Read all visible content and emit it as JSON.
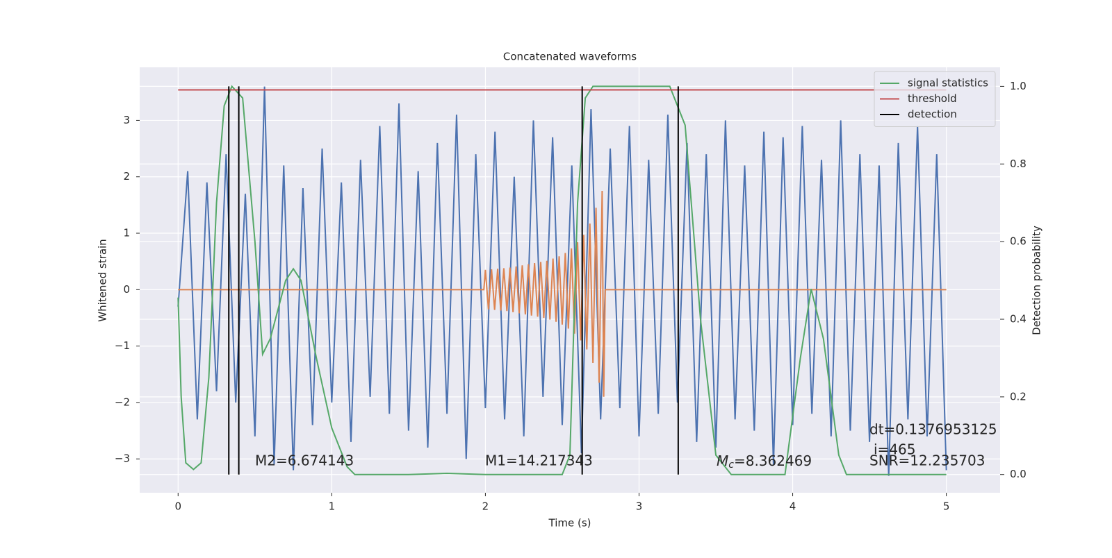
{
  "chart_data": {
    "type": "line",
    "title": "Concatenated waveforms",
    "xlabel": "Time (s)",
    "ylabel": "Whitened strain",
    "y2label": "Detection probability",
    "grid": true,
    "legend": "upper right",
    "xlim": [
      -0.25,
      5.35
    ],
    "ylim": [
      -3.6,
      3.94
    ],
    "y2lim": [
      -0.047,
      1.049
    ],
    "xticks": [
      0,
      1,
      2,
      3,
      4,
      5
    ],
    "yticks": [
      {
        "value": -3,
        "label": "−3"
      },
      {
        "value": -2,
        "label": "−2"
      },
      {
        "value": -1,
        "label": "−1"
      },
      0,
      1,
      2,
      3
    ],
    "y2ticks": [
      {
        "value": 0,
        "label": "0.0"
      },
      {
        "value": 0.2,
        "label": "0.2"
      },
      {
        "value": 0.4,
        "label": "0.4"
      },
      {
        "value": 0.6,
        "label": "0.6"
      },
      {
        "value": 0.8,
        "label": "0.8"
      },
      {
        "value": 1,
        "label": "1.0"
      }
    ],
    "series": [
      {
        "color": "#4c72b0",
        "x": [
          0,
          0.0625,
          0.125,
          0.1875,
          0.25,
          0.3125,
          0.375,
          0.4375,
          0.5,
          0.5625,
          0.625,
          0.6875,
          0.75,
          0.8125,
          0.875,
          0.9375,
          1,
          1.0625,
          1.125,
          1.1875,
          1.25,
          1.3125,
          1.375,
          1.4375,
          1.5,
          1.5625,
          1.625,
          1.6875,
          1.75,
          1.8125,
          1.875,
          1.9375,
          2,
          2.0625,
          2.125,
          2.1875,
          2.25,
          2.3125,
          2.375,
          2.4375,
          2.5,
          2.5625,
          2.625,
          2.6875,
          2.75,
          2.8125,
          2.875,
          2.9375,
          3,
          3.0625,
          3.125,
          3.1875,
          3.25,
          3.3125,
          3.375,
          3.4375,
          3.5,
          3.5625,
          3.625,
          3.6875,
          3.75,
          3.8125,
          3.875,
          3.9375,
          4,
          4.0625,
          4.125,
          4.1875,
          4.25,
          4.3125,
          4.375,
          4.4375,
          4.5,
          4.5625,
          4.625,
          4.6875,
          4.75,
          4.8125,
          4.875,
          4.9375,
          5
        ],
        "values": [
          -0.3,
          2.1,
          -2.3,
          1.9,
          -1.8,
          2.4,
          -2.0,
          1.7,
          -2.6,
          3.6,
          -3.1,
          2.2,
          -3.2,
          1.8,
          -2.4,
          2.5,
          -2.0,
          1.9,
          -2.7,
          2.3,
          -1.9,
          2.9,
          -2.2,
          3.3,
          -2.5,
          2.1,
          -2.8,
          2.6,
          -2.2,
          3.1,
          -3.0,
          2.4,
          -2.1,
          2.8,
          -2.3,
          2.0,
          -2.6,
          3.0,
          -1.9,
          2.7,
          -2.4,
          2.2,
          -2.9,
          3.2,
          -2.3,
          2.5,
          -2.1,
          2.9,
          -2.6,
          2.3,
          -2.2,
          3.1,
          -2.0,
          2.6,
          -2.7,
          2.4,
          -2.8,
          3.0,
          -2.3,
          2.2,
          -2.5,
          2.8,
          -3.1,
          2.7,
          -2.4,
          2.9,
          -2.2,
          2.3,
          -2.6,
          3.0,
          -2.5,
          2.4,
          -2.7,
          2.2,
          -3.3,
          2.6,
          -2.3,
          2.9,
          -2.6,
          2.4,
          -3.2
        ]
      },
      {
        "color": "#dd8452",
        "x": [
          0,
          1.99,
          2,
          2.02,
          2.04,
          2.06,
          2.08,
          2.1,
          2.12,
          2.14,
          2.16,
          2.18,
          2.2,
          2.22,
          2.24,
          2.26,
          2.28,
          2.3,
          2.32,
          2.34,
          2.36,
          2.38,
          2.4,
          2.42,
          2.44,
          2.46,
          2.48,
          2.5,
          2.52,
          2.54,
          2.56,
          2.58,
          2.6,
          2.62,
          2.64,
          2.66,
          2.68,
          2.7,
          2.72,
          2.74,
          2.76,
          2.77,
          2.78,
          5
        ],
        "values": [
          0,
          0,
          0.35,
          -0.35,
          0.36,
          -0.36,
          0.37,
          -0.37,
          0.38,
          -0.38,
          0.39,
          -0.4,
          0.41,
          -0.42,
          0.43,
          -0.44,
          0.45,
          -0.46,
          0.47,
          -0.48,
          0.49,
          -0.5,
          0.51,
          -0.53,
          0.55,
          -0.57,
          0.59,
          -0.62,
          0.65,
          -0.69,
          0.73,
          -0.78,
          0.84,
          -0.9,
          0.97,
          -1.06,
          1.17,
          -1.3,
          1.45,
          -1.65,
          1.75,
          -1.9,
          0,
          0
        ]
      },
      {
        "name": "signal statistics",
        "color": "#55a868",
        "axis": "y2",
        "x": [
          0,
          0.02,
          0.05,
          0.1,
          0.15,
          0.2,
          0.25,
          0.3,
          0.35,
          0.42,
          0.5,
          0.55,
          0.6,
          0.7,
          0.75,
          0.8,
          0.9,
          1.0,
          1.1,
          1.15,
          1.5,
          1.75,
          2.0,
          2.5,
          2.55,
          2.6,
          2.65,
          2.7,
          3.2,
          3.3,
          3.4,
          3.5,
          3.6,
          3.95,
          4.05,
          4.12,
          4.2,
          4.3,
          4.35,
          5.0
        ],
        "values": [
          0.456,
          0.2,
          0.03,
          0.013,
          0.03,
          0.25,
          0.7,
          0.95,
          1.0,
          0.97,
          0.6,
          0.31,
          0.35,
          0.5,
          0.53,
          0.5,
          0.3,
          0.12,
          0.02,
          0,
          0,
          0.003,
          0,
          0,
          0.05,
          0.7,
          0.97,
          1.0,
          1.0,
          0.9,
          0.4,
          0.05,
          0,
          0,
          0.3,
          0.478,
          0.35,
          0.05,
          0,
          0
        ]
      },
      {
        "name": "threshold",
        "color": "#c44e52",
        "axis": "y2",
        "x": [
          0,
          5
        ],
        "values": [
          0.991,
          0.991
        ]
      },
      {
        "name": "detection",
        "color": "#000000",
        "axis": "y2",
        "x": [
          0.33,
          0.395,
          2.63,
          3.255
        ]
      }
    ],
    "annotations": [
      "M2=6.674143",
      "M1=14.217343",
      {
        "symbol": "M",
        "subscript": "c",
        "text": "=8.362469"
      },
      "dt=0.1376953125",
      "i=465",
      "SNR=12.235703"
    ]
  }
}
